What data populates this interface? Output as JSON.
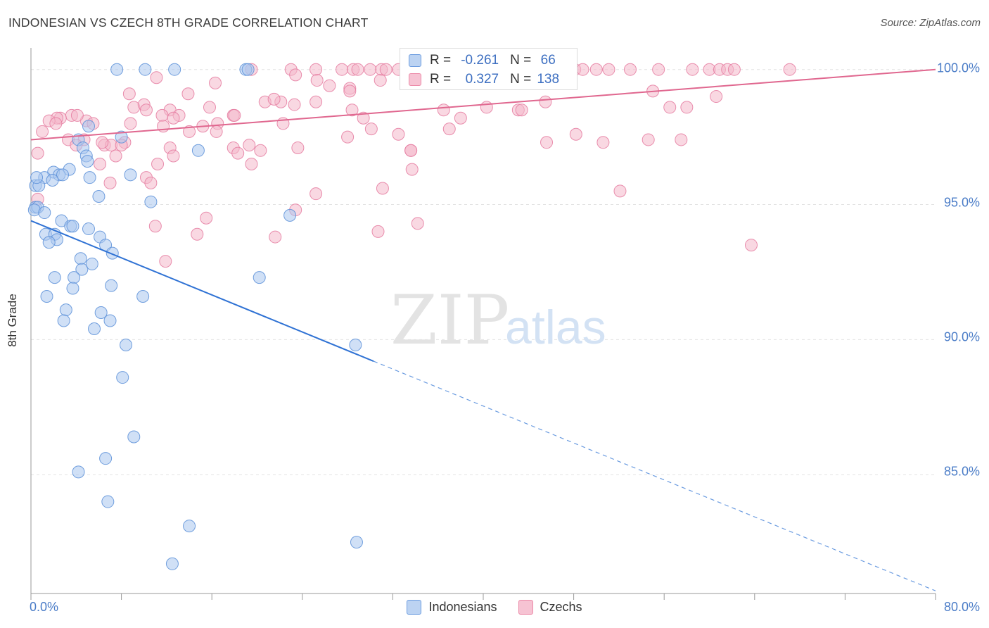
{
  "header": {
    "title": "INDONESIAN VS CZECH 8TH GRADE CORRELATION CHART",
    "source": "Source: ZipAtlas.com"
  },
  "watermark": {
    "zip": "ZIP",
    "atlas": "atlas"
  },
  "legend": {
    "r_label": "R =",
    "n_label": "N =",
    "rows": [
      {
        "r": "-0.261",
        "n": "66",
        "color": "#6d9de0",
        "fill": "#bcd3f2"
      },
      {
        "r": "0.327",
        "n": "138",
        "color": "#ec8aa8",
        "fill": "#f6c3d3"
      }
    ],
    "bottom": [
      {
        "label": "Indonesians",
        "color": "#6d9de0",
        "fill": "#bcd3f2"
      },
      {
        "label": "Czechs",
        "color": "#ec8aa8",
        "fill": "#f6c3d3"
      }
    ]
  },
  "chart_data": {
    "type": "scatter",
    "title": "INDONESIAN VS CZECH 8TH GRADE CORRELATION CHART",
    "xlabel": "",
    "ylabel": "8th Grade",
    "xlim": [
      0,
      80
    ],
    "ylim": [
      80.6,
      100.8
    ],
    "x_tick_labels": [
      "0.0%",
      "80.0%"
    ],
    "y_ticks": [
      100,
      95,
      90,
      85
    ],
    "y_tick_labels": [
      "100.0%",
      "95.0%",
      "90.0%",
      "85.0%"
    ],
    "grid": true,
    "legend_position": "top-center",
    "series": [
      {
        "name": "Indonesians",
        "color": "#5b8fd8",
        "fill": "#a9c6ee",
        "r": -0.261,
        "n": 66,
        "trend": {
          "x0": 0,
          "y0": 94.4,
          "x1": 30.3,
          "y1": 89.2,
          "x_dash_end": 80,
          "y_dash_end": 80.7
        },
        "points": [
          [
            7.6,
            100
          ],
          [
            10.1,
            100
          ],
          [
            12.7,
            100
          ],
          [
            19.0,
            100
          ],
          [
            19.2,
            100
          ],
          [
            5.1,
            97.9
          ],
          [
            8.0,
            97.5
          ],
          [
            4.2,
            97.4
          ],
          [
            4.6,
            97.1
          ],
          [
            14.8,
            97.0
          ],
          [
            4.9,
            96.8
          ],
          [
            5.0,
            96.6
          ],
          [
            2.0,
            96.2
          ],
          [
            3.4,
            96.3
          ],
          [
            1.2,
            96.0
          ],
          [
            2.5,
            96.1
          ],
          [
            2.8,
            96.1
          ],
          [
            5.2,
            96.0
          ],
          [
            8.8,
            96.1
          ],
          [
            0.4,
            95.7
          ],
          [
            0.7,
            95.7
          ],
          [
            6.0,
            95.3
          ],
          [
            10.6,
            95.1
          ],
          [
            0.4,
            94.9
          ],
          [
            0.6,
            94.9
          ],
          [
            0.3,
            94.8
          ],
          [
            1.2,
            94.7
          ],
          [
            22.9,
            94.6
          ],
          [
            2.7,
            94.4
          ],
          [
            3.5,
            94.2
          ],
          [
            3.7,
            94.2
          ],
          [
            1.3,
            93.9
          ],
          [
            2.1,
            93.9
          ],
          [
            2.3,
            93.7
          ],
          [
            5.1,
            94.1
          ],
          [
            1.6,
            93.6
          ],
          [
            6.1,
            93.8
          ],
          [
            6.6,
            93.5
          ],
          [
            7.2,
            93.2
          ],
          [
            4.4,
            93.0
          ],
          [
            4.5,
            92.6
          ],
          [
            5.4,
            92.8
          ],
          [
            2.1,
            92.3
          ],
          [
            3.8,
            92.3
          ],
          [
            20.2,
            92.3
          ],
          [
            3.7,
            91.9
          ],
          [
            7.1,
            92.0
          ],
          [
            1.4,
            91.6
          ],
          [
            9.9,
            91.6
          ],
          [
            3.1,
            91.1
          ],
          [
            6.2,
            91.0
          ],
          [
            2.9,
            90.7
          ],
          [
            7.0,
            90.7
          ],
          [
            5.6,
            90.4
          ],
          [
            8.4,
            89.8
          ],
          [
            28.7,
            89.8
          ],
          [
            8.1,
            88.6
          ],
          [
            9.1,
            86.4
          ],
          [
            6.6,
            85.6
          ],
          [
            4.2,
            85.1
          ],
          [
            6.8,
            84.0
          ],
          [
            14.0,
            83.1
          ],
          [
            28.8,
            82.5
          ],
          [
            12.5,
            81.7
          ],
          [
            0.5,
            96.0
          ],
          [
            1.9,
            95.9
          ]
        ]
      },
      {
        "name": "Czechs",
        "color": "#e57ba0",
        "fill": "#f4b8cb",
        "r": 0.327,
        "n": 138,
        "trend": {
          "x0": 0,
          "y0": 97.4,
          "x1": 80,
          "y1": 100.0
        },
        "points": [
          [
            19.5,
            100
          ],
          [
            23.0,
            100
          ],
          [
            25.2,
            100
          ],
          [
            27.5,
            100
          ],
          [
            28.5,
            100
          ],
          [
            28.9,
            100
          ],
          [
            30.0,
            100
          ],
          [
            31.0,
            100
          ],
          [
            31.4,
            100
          ],
          [
            32.5,
            100
          ],
          [
            35.0,
            100
          ],
          [
            36.2,
            100
          ],
          [
            38.6,
            100
          ],
          [
            40.0,
            100
          ],
          [
            42.5,
            100
          ],
          [
            43.0,
            100
          ],
          [
            45.0,
            100
          ],
          [
            46.0,
            100
          ],
          [
            47.0,
            100
          ],
          [
            48.1,
            100
          ],
          [
            48.8,
            100
          ],
          [
            50.0,
            100
          ],
          [
            51.1,
            100
          ],
          [
            53.0,
            100
          ],
          [
            55.5,
            100
          ],
          [
            58.5,
            100
          ],
          [
            60.0,
            100
          ],
          [
            60.9,
            100
          ],
          [
            61.6,
            100
          ],
          [
            62.2,
            100
          ],
          [
            67.1,
            100
          ],
          [
            30.9,
            99.6
          ],
          [
            33.5,
            99.5
          ],
          [
            16.3,
            99.5
          ],
          [
            26.4,
            99.4
          ],
          [
            28.2,
            99.3
          ],
          [
            11.1,
            99.7
          ],
          [
            23.4,
            99.8
          ],
          [
            25.3,
            99.6
          ],
          [
            35.7,
            99.7
          ],
          [
            35.4,
            99.6
          ],
          [
            55.0,
            99.2
          ],
          [
            40.9,
            99.8
          ],
          [
            13.9,
            99.1
          ],
          [
            8.7,
            99.1
          ],
          [
            23.3,
            98.7
          ],
          [
            22.1,
            98.8
          ],
          [
            28.2,
            99.2
          ],
          [
            25.2,
            98.8
          ],
          [
            20.7,
            98.8
          ],
          [
            21.5,
            98.9
          ],
          [
            9.1,
            98.6
          ],
          [
            12.3,
            98.5
          ],
          [
            10.0,
            98.7
          ],
          [
            10.2,
            98.5
          ],
          [
            15.8,
            98.6
          ],
          [
            17.9,
            98.3
          ],
          [
            18.0,
            98.3
          ],
          [
            13.1,
            98.3
          ],
          [
            11.6,
            98.3
          ],
          [
            12.6,
            98.2
          ],
          [
            3.6,
            98.3
          ],
          [
            2.6,
            98.2
          ],
          [
            2.3,
            98.2
          ],
          [
            1.6,
            98.1
          ],
          [
            4.9,
            98.1
          ],
          [
            5.5,
            98.0
          ],
          [
            8.8,
            98.0
          ],
          [
            11.7,
            97.9
          ],
          [
            14.0,
            97.7
          ],
          [
            15.2,
            97.9
          ],
          [
            16.5,
            98.0
          ],
          [
            29.4,
            98.2
          ],
          [
            28.4,
            98.5
          ],
          [
            38.0,
            98.2
          ],
          [
            43.1,
            98.5
          ],
          [
            43.4,
            98.5
          ],
          [
            45.5,
            98.8
          ],
          [
            36.5,
            98.5
          ],
          [
            40.3,
            98.6
          ],
          [
            30.1,
            97.8
          ],
          [
            32.5,
            97.6
          ],
          [
            33.6,
            97.0
          ],
          [
            37.0,
            97.8
          ],
          [
            45.6,
            97.3
          ],
          [
            48.2,
            97.6
          ],
          [
            50.6,
            97.3
          ],
          [
            54.6,
            97.4
          ],
          [
            56.5,
            98.6
          ],
          [
            57.5,
            97.4
          ],
          [
            58.0,
            98.6
          ],
          [
            60.6,
            99.0
          ],
          [
            2.2,
            98.0
          ],
          [
            1.0,
            97.7
          ],
          [
            3.3,
            97.4
          ],
          [
            4.7,
            97.4
          ],
          [
            6.5,
            97.2
          ],
          [
            7.1,
            97.2
          ],
          [
            8.3,
            97.3
          ],
          [
            7.5,
            96.8
          ],
          [
            6.3,
            97.3
          ],
          [
            4.0,
            97.2
          ],
          [
            12.3,
            97.1
          ],
          [
            12.6,
            96.8
          ],
          [
            17.9,
            97.1
          ],
          [
            18.3,
            96.9
          ],
          [
            19.3,
            97.2
          ],
          [
            20.3,
            97.0
          ],
          [
            19.5,
            96.5
          ],
          [
            23.6,
            97.1
          ],
          [
            28.0,
            97.5
          ],
          [
            33.6,
            97.0
          ],
          [
            33.7,
            96.3
          ],
          [
            0.6,
            96.9
          ],
          [
            6.1,
            96.5
          ],
          [
            11.2,
            96.5
          ],
          [
            10.2,
            96.0
          ],
          [
            7.0,
            95.8
          ],
          [
            10.6,
            95.8
          ],
          [
            31.1,
            95.6
          ],
          [
            25.2,
            95.4
          ],
          [
            52.1,
            95.5
          ],
          [
            0.6,
            95.2
          ],
          [
            23.4,
            94.8
          ],
          [
            15.5,
            94.5
          ],
          [
            11.0,
            94.2
          ],
          [
            14.7,
            93.9
          ],
          [
            21.6,
            93.8
          ],
          [
            30.7,
            94.0
          ],
          [
            34.2,
            94.3
          ],
          [
            63.7,
            93.5
          ],
          [
            11.9,
            92.9
          ],
          [
            4.1,
            98.3
          ],
          [
            8.0,
            97.2
          ],
          [
            22.3,
            98.0
          ],
          [
            16.4,
            97.7
          ]
        ]
      }
    ]
  }
}
